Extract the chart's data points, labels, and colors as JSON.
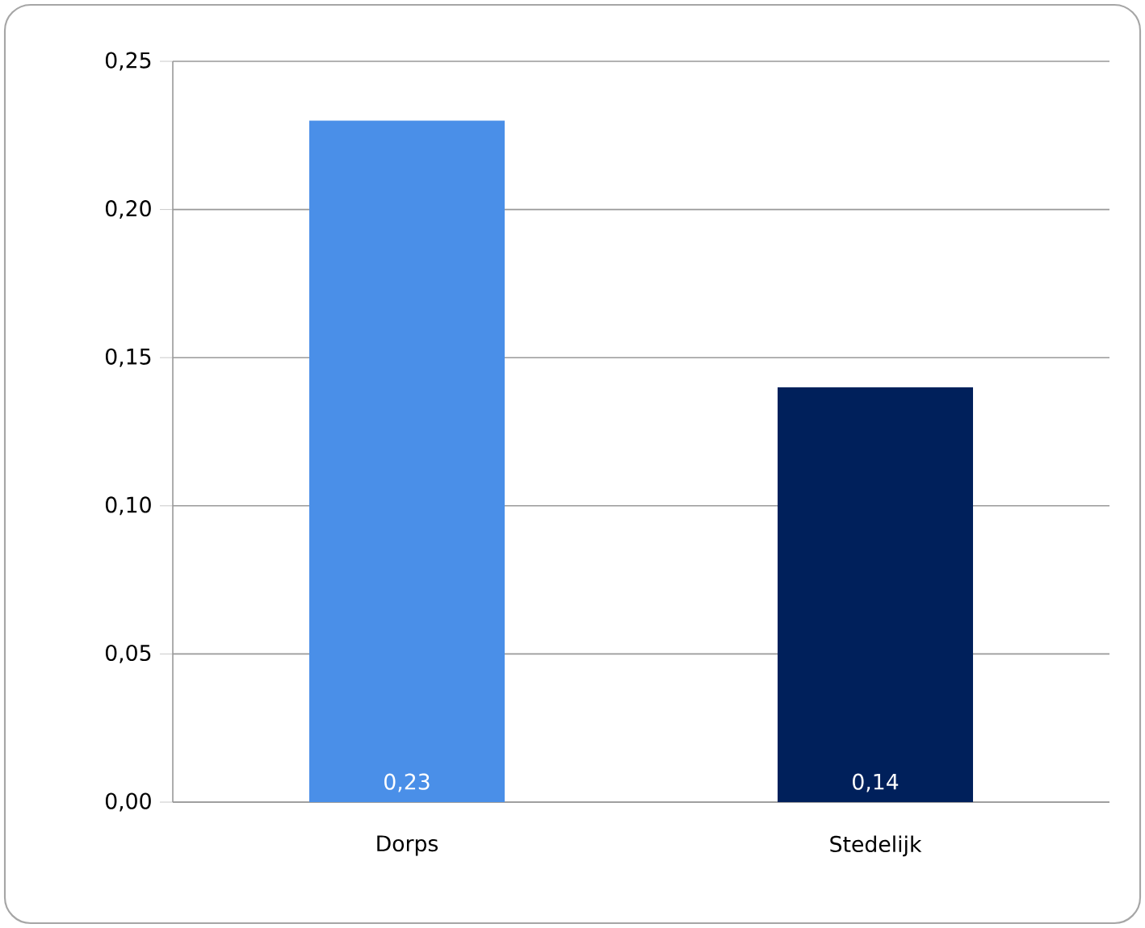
{
  "chart_data": {
    "type": "bar",
    "categories": [
      "Dorps",
      "Stedelijk"
    ],
    "values": [
      0.23,
      0.14
    ],
    "colors": [
      "#4a8fe8",
      "#00205b"
    ],
    "value_labels": [
      "0,23",
      "0,14"
    ],
    "ylim": [
      0,
      0.25
    ],
    "yticks": [
      {
        "value": 0,
        "label": "0,00"
      },
      {
        "value": 0.05,
        "label": "0,05"
      },
      {
        "value": 0.1,
        "label": "0,10"
      },
      {
        "value": 0.15,
        "label": "0,15"
      },
      {
        "value": 0.2,
        "label": "0,20"
      },
      {
        "value": 0.25,
        "label": "0,25"
      }
    ],
    "grid": "y"
  }
}
